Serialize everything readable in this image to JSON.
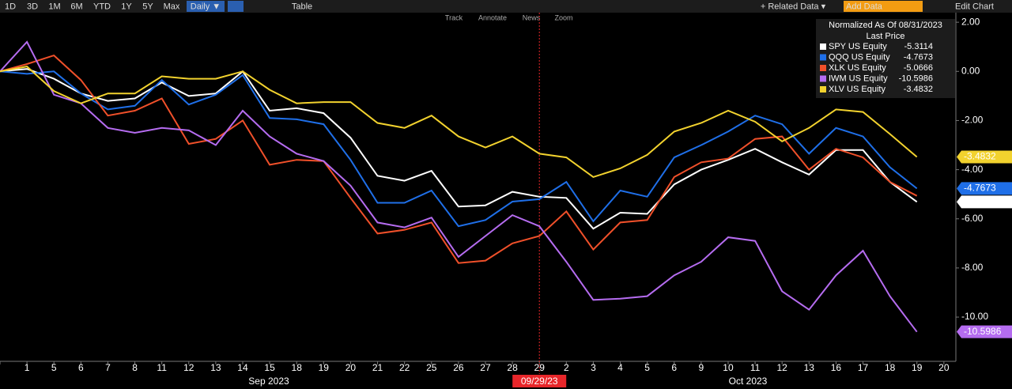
{
  "toolbar": {
    "ranges": [
      "1D",
      "3D",
      "1M",
      "6M",
      "YTD",
      "1Y",
      "5Y",
      "Max"
    ],
    "frequency": "Daily ▼",
    "table": "Table",
    "related": "+ Related Data ▾",
    "add_data": "Add Data",
    "edit": "Edit Chart",
    "tools": [
      "Track",
      "Annotate",
      "News",
      "Zoom"
    ]
  },
  "chart_data": {
    "type": "line",
    "legend_title": "Normalized As Of 08/31/2023",
    "legend_subtitle": "Last Price",
    "categories": [
      null,
      "1",
      "5",
      "6",
      "7",
      "8",
      "11",
      "12",
      "13",
      "14",
      "15",
      "18",
      "19",
      "20",
      "21",
      "22",
      "25",
      "26",
      "27",
      "28",
      "29",
      "2",
      "3",
      "4",
      "5",
      "6",
      "9",
      "10",
      "11",
      "12",
      "13",
      "16",
      "17",
      "18",
      "19",
      "20"
    ],
    "month_labels": [
      "Sep 2023",
      "Oct 2023"
    ],
    "marker": {
      "label": "09/29/23",
      "category": "29",
      "color": "#e8262a"
    },
    "series": [
      {
        "name": "SPY US Equity",
        "color": "#ffffff",
        "end_label": true,
        "values": [
          0,
          0.1,
          -0.3,
          -0.9,
          -1.2,
          -1.1,
          -0.45,
          -1.0,
          -0.9,
          0,
          -1.6,
          -1.5,
          -1.7,
          -2.7,
          -4.25,
          -4.45,
          -4.05,
          -5.5,
          -5.45,
          -4.9,
          -5.1,
          -5.15,
          -6.4,
          -5.75,
          -5.8,
          -4.6,
          -4.0,
          -3.6,
          -3.15,
          -3.7,
          -4.2,
          -3.2,
          -3.2,
          -4.5,
          -5.3114,
          null
        ]
      },
      {
        "name": "QQQ US Equity",
        "color": "#1f6fe8",
        "end_label": true,
        "values": [
          0,
          -0.1,
          0.0,
          -0.9,
          -1.55,
          -1.4,
          -0.35,
          -1.35,
          -0.95,
          -0.15,
          -1.9,
          -1.95,
          -2.15,
          -3.6,
          -5.35,
          -5.35,
          -4.85,
          -6.3,
          -6.05,
          -5.3,
          -5.2,
          -4.5,
          -6.1,
          -4.85,
          -5.1,
          -3.5,
          -3.0,
          -2.45,
          -1.8,
          -2.15,
          -3.35,
          -2.3,
          -2.65,
          -3.9,
          -4.7673,
          null
        ]
      },
      {
        "name": "XLK US Equity",
        "color": "#f0502a",
        "end_label": false,
        "values": [
          0,
          0.3,
          0.65,
          -0.35,
          -1.8,
          -1.6,
          -1.1,
          -2.95,
          -2.75,
          -2.0,
          -3.8,
          -3.6,
          -3.65,
          -5.15,
          -6.6,
          -6.45,
          -6.15,
          -7.8,
          -7.7,
          -7.0,
          -6.7,
          -5.7,
          -7.25,
          -6.15,
          -6.05,
          -4.3,
          -3.7,
          -3.55,
          -2.75,
          -2.65,
          -4.0,
          -3.15,
          -3.5,
          -4.5,
          -5.0666,
          null
        ]
      },
      {
        "name": "IWM US Equity",
        "color": "#b56cf0",
        "end_label": true,
        "values": [
          0,
          1.2,
          -0.95,
          -1.3,
          -2.3,
          -2.5,
          -2.3,
          -2.4,
          -3.0,
          -1.6,
          -2.65,
          -3.35,
          -3.65,
          -4.65,
          -6.15,
          -6.35,
          -5.95,
          -7.55,
          -6.7,
          -5.85,
          -6.3,
          -7.75,
          -9.3,
          -9.25,
          -9.15,
          -8.3,
          -7.75,
          -6.75,
          -6.9,
          -8.95,
          -9.7,
          -8.3,
          -7.3,
          -9.15,
          -10.5986,
          null
        ]
      },
      {
        "name": "XLV US Equity",
        "color": "#f2d22e",
        "end_label": true,
        "values": [
          0,
          0.2,
          -0.8,
          -1.3,
          -0.9,
          -0.9,
          -0.2,
          -0.3,
          -0.3,
          0,
          -0.75,
          -1.3,
          -1.25,
          -1.25,
          -2.1,
          -2.3,
          -1.8,
          -2.65,
          -3.1,
          -2.65,
          -3.35,
          -3.5,
          -4.3,
          -3.95,
          -3.4,
          -2.45,
          -2.1,
          -1.6,
          -2.05,
          -2.85,
          -2.3,
          -1.55,
          -1.65,
          -2.55,
          -3.4832,
          null
        ]
      }
    ],
    "ylim": [
      -11.8,
      2.39
    ],
    "yticks": [
      {
        "value": 2,
        "label": "2.00"
      },
      {
        "value": 0,
        "label": "0.00"
      },
      {
        "value": -2,
        "label": "-2.00"
      },
      {
        "value": -4,
        "label": "-4.00"
      },
      {
        "value": -6,
        "label": "-6.00"
      },
      {
        "value": -8,
        "label": "-8.00"
      },
      {
        "value": -10,
        "label": "-10.00"
      }
    ]
  }
}
